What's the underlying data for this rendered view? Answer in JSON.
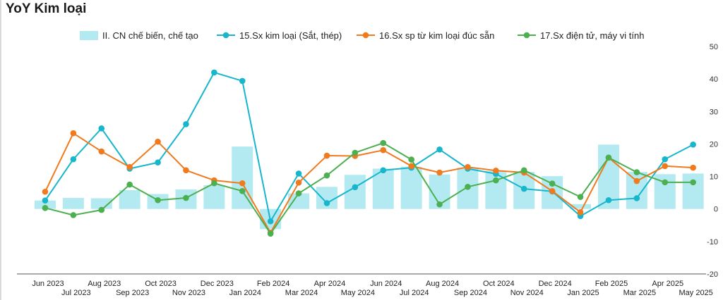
{
  "title": "YoY Kim loại",
  "chart_data": {
    "type": "bar+line",
    "categories": [
      "Jun 2023",
      "Jul 2023",
      "Aug 2023",
      "Sep 2023",
      "Oct 2023",
      "Nov 2023",
      "Dec 2023",
      "Jan 2024",
      "Feb 2024",
      "Mar 2024",
      "Apr 2024",
      "May 2024",
      "Jun 2024",
      "Jul 2024",
      "Aug 2024",
      "Sep 2024",
      "Oct 2024",
      "Nov 2024",
      "Dec 2024",
      "Jan 2025",
      "Feb 2025",
      "Mar 2025",
      "Apr 2025",
      "May 2025"
    ],
    "y_axis": {
      "position": "right",
      "min": -20,
      "max": 50,
      "ticks": [
        50,
        40,
        30,
        20,
        10,
        0,
        -10,
        -20
      ]
    },
    "legend_position": "top",
    "grid": false,
    "series": [
      {
        "name": "II. CN chế biến, chế tạo",
        "kind": "bar",
        "color": "#b3eaf2",
        "values": [
          2.6,
          3.4,
          3.3,
          5.8,
          4.6,
          6.0,
          7.3,
          19.2,
          -6.2,
          4.8,
          6.8,
          10.5,
          12.4,
          13.0,
          10.6,
          12.7,
          11.7,
          11.4,
          10.1,
          1.5,
          19.8,
          11.4,
          10.7,
          10.9
        ]
      },
      {
        "name": "15.Sx kim loại (Sắt, thép)",
        "kind": "line",
        "color": "#17b6cc",
        "values": [
          2.6,
          15.3,
          24.8,
          12.4,
          14.3,
          26.1,
          42.0,
          39.4,
          -3.8,
          10.9,
          1.8,
          6.7,
          11.9,
          12.7,
          18.3,
          12.4,
          10.8,
          6.2,
          5.4,
          -2.2,
          2.7,
          3.3,
          15.3,
          19.8
        ]
      },
      {
        "name": "16.Sx sp từ kim loại đúc sẵn",
        "kind": "line",
        "color": "#f07a1e",
        "values": [
          5.3,
          23.3,
          17.7,
          12.9,
          20.7,
          11.9,
          8.8,
          7.9,
          -7.3,
          8.1,
          16.4,
          16.3,
          18.1,
          13.2,
          11.2,
          12.9,
          11.8,
          11.2,
          5.5,
          -1.0,
          15.8,
          8.6,
          13.2,
          12.7
        ]
      },
      {
        "name": "17.Sx điện tử, máy vi tính",
        "kind": "line",
        "color": "#4caf50",
        "values": [
          0.3,
          -1.9,
          -0.3,
          7.5,
          2.7,
          3.4,
          7.9,
          5.5,
          -7.6,
          4.8,
          10.3,
          17.3,
          20.3,
          15.2,
          1.4,
          6.8,
          8.8,
          11.9,
          7.8,
          3.7,
          15.8,
          11.3,
          8.2,
          8.2
        ]
      }
    ]
  }
}
